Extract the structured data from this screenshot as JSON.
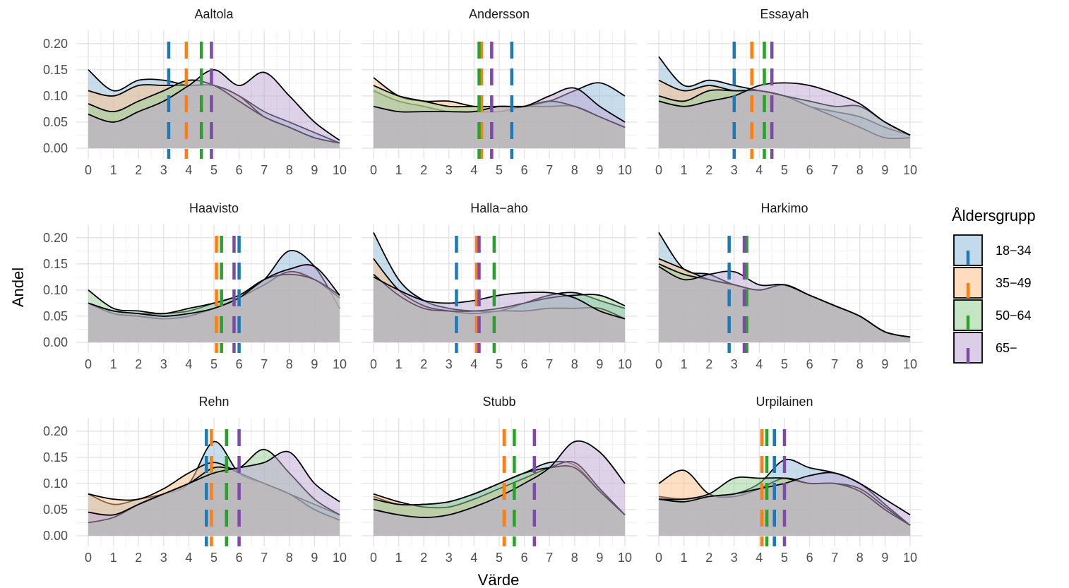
{
  "chart_data": {
    "type": "area",
    "facets": [
      "Aaltola",
      "Andersson",
      "Essayah",
      "Haavisto",
      "Halla−aho",
      "Harkimo",
      "Rehn",
      "Stubb",
      "Urpilainen"
    ],
    "x_ticks": [
      0,
      1,
      2,
      3,
      4,
      5,
      6,
      7,
      8,
      9,
      10
    ],
    "y_ticks": [
      0.0,
      0.05,
      0.1,
      0.15,
      0.2
    ],
    "y_tick_labels": [
      "0.00",
      "0.05",
      "0.10",
      "0.15",
      "0.20"
    ],
    "xlim": [
      0,
      10
    ],
    "ylim": [
      0,
      0.22
    ],
    "xlabel": "Värde",
    "ylabel": "Andel",
    "legend": {
      "title": "Åldersgrupp",
      "placement": "right",
      "entries": [
        "18−34",
        "35−49",
        "50−64",
        "65−"
      ]
    },
    "colors": {
      "18-34": "#1f77b4",
      "35-49": "#ff7f0e",
      "50-64": "#2ca02c",
      "65-": "#7d4aa8",
      "fill_18-34": "#8fbbda",
      "fill_35-49": "#ffbf87",
      "fill_50-64": "#96d096",
      "fill_65-": "#bea6d4"
    },
    "x": [
      0,
      1,
      2,
      3,
      4,
      5,
      6,
      7,
      8,
      9,
      10
    ],
    "panels": [
      {
        "name": "Aaltola",
        "series": [
          {
            "name": "18−34",
            "values": [
              0.15,
              0.11,
              0.13,
              0.13,
              0.12,
              0.12,
              0.1,
              0.07,
              0.05,
              0.03,
              0.01
            ],
            "mean": 3.2
          },
          {
            "name": "35−49",
            "values": [
              0.11,
              0.1,
              0.12,
              0.12,
              0.12,
              0.12,
              0.1,
              0.06,
              0.04,
              0.02,
              0.01
            ],
            "mean": 3.9
          },
          {
            "name": "50−64",
            "values": [
              0.085,
              0.07,
              0.09,
              0.11,
              0.13,
              0.12,
              0.09,
              0.06,
              0.04,
              0.02,
              0.01
            ],
            "mean": 4.5
          },
          {
            "name": "65−",
            "values": [
              0.065,
              0.05,
              0.07,
              0.09,
              0.12,
              0.15,
              0.12,
              0.145,
              0.1,
              0.05,
              0.015
            ],
            "mean": 4.9
          }
        ]
      },
      {
        "name": "Andersson",
        "series": [
          {
            "name": "18−34",
            "values": [
              0.11,
              0.09,
              0.08,
              0.07,
              0.07,
              0.07,
              0.08,
              0.09,
              0.11,
              0.125,
              0.1
            ],
            "mean": 5.5
          },
          {
            "name": "35−49",
            "values": [
              0.135,
              0.1,
              0.09,
              0.09,
              0.08,
              0.08,
              0.08,
              0.08,
              0.08,
              0.06,
              0.04
            ],
            "mean": 4.3
          },
          {
            "name": "50−64",
            "values": [
              0.12,
              0.1,
              0.09,
              0.08,
              0.08,
              0.08,
              0.08,
              0.09,
              0.08,
              0.06,
              0.04
            ],
            "mean": 4.2
          },
          {
            "name": "65−",
            "values": [
              0.08,
              0.07,
              0.07,
              0.07,
              0.07,
              0.08,
              0.08,
              0.1,
              0.115,
              0.08,
              0.05
            ],
            "mean": 4.7
          }
        ]
      },
      {
        "name": "Essayah",
        "series": [
          {
            "name": "18−34",
            "values": [
              0.175,
              0.12,
              0.13,
              0.12,
              0.11,
              0.1,
              0.08,
              0.07,
              0.06,
              0.04,
              0.025
            ],
            "mean": 3.0
          },
          {
            "name": "35−49",
            "values": [
              0.13,
              0.11,
              0.12,
              0.11,
              0.11,
              0.1,
              0.08,
              0.06,
              0.04,
              0.02,
              0.02
            ],
            "mean": 3.7
          },
          {
            "name": "50−64",
            "values": [
              0.1,
              0.09,
              0.11,
              0.11,
              0.11,
              0.1,
              0.09,
              0.08,
              0.08,
              0.05,
              0.025
            ],
            "mean": 4.2
          },
          {
            "name": "65−",
            "values": [
              0.09,
              0.08,
              0.09,
              0.1,
              0.12,
              0.125,
              0.12,
              0.105,
              0.085,
              0.05,
              0.025
            ],
            "mean": 4.5
          }
        ]
      },
      {
        "name": "Haavisto",
        "series": [
          {
            "name": "18−34",
            "values": [
              0.075,
              0.06,
              0.055,
              0.055,
              0.06,
              0.075,
              0.09,
              0.12,
              0.175,
              0.145,
              0.065
            ],
            "mean": 6.0
          },
          {
            "name": "35−49",
            "values": [
              0.075,
              0.055,
              0.05,
              0.045,
              0.05,
              0.065,
              0.085,
              0.11,
              0.135,
              0.12,
              0.085
            ],
            "mean": 5.1
          },
          {
            "name": "50−64",
            "values": [
              0.1,
              0.065,
              0.06,
              0.055,
              0.065,
              0.075,
              0.09,
              0.12,
              0.13,
              0.12,
              0.09
            ],
            "mean": 5.3
          },
          {
            "name": "65−",
            "values": [
              0.075,
              0.06,
              0.055,
              0.05,
              0.055,
              0.065,
              0.085,
              0.12,
              0.14,
              0.145,
              0.09
            ],
            "mean": 5.8
          }
        ]
      },
      {
        "name": "Halla−aho",
        "series": [
          {
            "name": "18−34",
            "values": [
              0.21,
              0.12,
              0.08,
              0.065,
              0.06,
              0.06,
              0.075,
              0.09,
              0.095,
              0.08,
              0.065
            ],
            "mean": 3.3
          },
          {
            "name": "35−49",
            "values": [
              0.16,
              0.1,
              0.07,
              0.06,
              0.055,
              0.06,
              0.06,
              0.065,
              0.065,
              0.065,
              0.045
            ],
            "mean": 4.1
          },
          {
            "name": "50−64",
            "values": [
              0.13,
              0.09,
              0.065,
              0.06,
              0.06,
              0.065,
              0.075,
              0.085,
              0.09,
              0.09,
              0.07
            ],
            "mean": 4.8
          },
          {
            "name": "65−",
            "values": [
              0.125,
              0.1,
              0.08,
              0.075,
              0.08,
              0.09,
              0.095,
              0.095,
              0.085,
              0.06,
              0.045
            ],
            "mean": 4.2
          }
        ]
      },
      {
        "name": "Harkimo",
        "series": [
          {
            "name": "18−34",
            "values": [
              0.21,
              0.14,
              0.13,
              0.11,
              0.1,
              0.11,
              0.09,
              0.07,
              0.05,
              0.02,
              0.01
            ],
            "mean": 2.8
          },
          {
            "name": "35−49",
            "values": [
              0.16,
              0.14,
              0.12,
              0.11,
              0.1,
              0.11,
              0.09,
              0.07,
              0.05,
              0.02,
              0.01
            ],
            "mean": 3.5
          },
          {
            "name": "50−64",
            "values": [
              0.15,
              0.13,
              0.12,
              0.11,
              0.1,
              0.11,
              0.09,
              0.07,
              0.05,
              0.02,
              0.01
            ],
            "mean": 3.5
          },
          {
            "name": "65−",
            "values": [
              0.145,
              0.12,
              0.13,
              0.135,
              0.11,
              0.11,
              0.09,
              0.07,
              0.05,
              0.02,
              0.01
            ],
            "mean": 3.4
          }
        ]
      },
      {
        "name": "Rehn",
        "series": [
          {
            "name": "18−34",
            "values": [
              0.08,
              0.06,
              0.07,
              0.08,
              0.1,
              0.18,
              0.12,
              0.1,
              0.08,
              0.06,
              0.04
            ],
            "mean": 4.7
          },
          {
            "name": "35−49",
            "values": [
              0.08,
              0.07,
              0.07,
              0.09,
              0.12,
              0.14,
              0.12,
              0.1,
              0.08,
              0.05,
              0.03
            ],
            "mean": 4.9
          },
          {
            "name": "50−64",
            "values": [
              0.025,
              0.035,
              0.06,
              0.08,
              0.1,
              0.13,
              0.13,
              0.165,
              0.12,
              0.07,
              0.04
            ],
            "mean": 5.5
          },
          {
            "name": "65−",
            "values": [
              0.045,
              0.04,
              0.06,
              0.08,
              0.1,
              0.12,
              0.13,
              0.14,
              0.16,
              0.1,
              0.065
            ],
            "mean": 6.0
          }
        ]
      },
      {
        "name": "Stubb",
        "series": [
          {
            "name": "18−34",
            "values": [
              0.075,
              0.06,
              0.06,
              0.065,
              0.08,
              0.1,
              0.12,
              0.14,
              0.135,
              0.085,
              0.04
            ],
            "mean": 5.2
          },
          {
            "name": "35−49",
            "values": [
              0.08,
              0.065,
              0.055,
              0.055,
              0.07,
              0.09,
              0.11,
              0.13,
              0.14,
              0.09,
              0.04
            ],
            "mean": 5.2
          },
          {
            "name": "50−64",
            "values": [
              0.07,
              0.06,
              0.06,
              0.065,
              0.08,
              0.1,
              0.12,
              0.13,
              0.13,
              0.085,
              0.04
            ],
            "mean": 5.6
          },
          {
            "name": "65−",
            "values": [
              0.05,
              0.04,
              0.035,
              0.04,
              0.055,
              0.075,
              0.1,
              0.13,
              0.18,
              0.16,
              0.1
            ],
            "mean": 6.4
          }
        ]
      },
      {
        "name": "Urpilainen",
        "series": [
          {
            "name": "18−34",
            "values": [
              0.075,
              0.07,
              0.075,
              0.08,
              0.1,
              0.145,
              0.13,
              0.12,
              0.1,
              0.06,
              0.02
            ],
            "mean": 4.6
          },
          {
            "name": "35−49",
            "values": [
              0.1,
              0.125,
              0.08,
              0.075,
              0.09,
              0.11,
              0.1,
              0.1,
              0.09,
              0.055,
              0.02
            ],
            "mean": 4.1
          },
          {
            "name": "50−64",
            "values": [
              0.07,
              0.07,
              0.08,
              0.11,
              0.11,
              0.11,
              0.1,
              0.1,
              0.085,
              0.05,
              0.02
            ],
            "mean": 4.3
          },
          {
            "name": "65−",
            "values": [
              0.07,
              0.065,
              0.075,
              0.08,
              0.09,
              0.1,
              0.115,
              0.12,
              0.1,
              0.07,
              0.04
            ],
            "mean": 5.0
          }
        ]
      }
    ]
  }
}
